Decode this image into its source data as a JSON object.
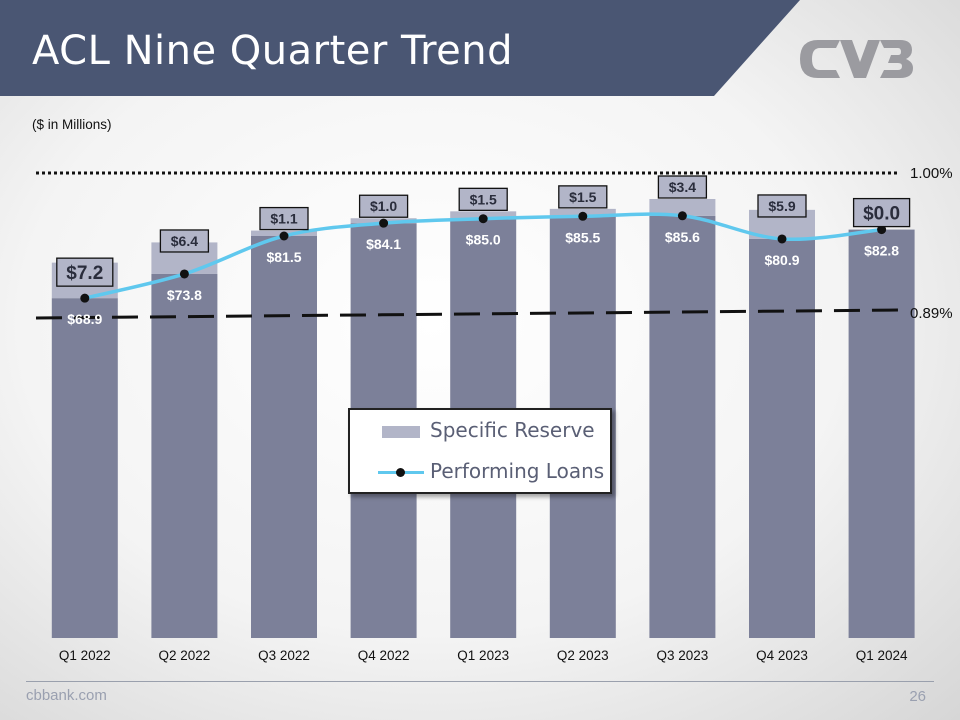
{
  "header": {
    "title": "ACL Nine Quarter Trend",
    "subtitle": "($ in Millions)",
    "band_color": "#4a5673"
  },
  "logo": {
    "text": "CVB",
    "color": "#9b9ba0"
  },
  "footer": {
    "url": "cbbank.com",
    "page": "26"
  },
  "legend": {
    "items": [
      {
        "label": "Specific Reserve",
        "color": "#b2b5c8"
      },
      {
        "label": "Performing Loans",
        "color": "#5fc8ee"
      }
    ]
  },
  "chart_data": {
    "type": "bar",
    "categories": [
      "Q1 2022",
      "Q2 2022",
      "Q3 2022",
      "Q4 2022",
      "Q1 2023",
      "Q2 2023",
      "Q3 2023",
      "Q4 2023",
      "Q1 2024"
    ],
    "series": [
      {
        "name": "Performing Loans",
        "render": "stacked-bar-base-with-line",
        "color": "#7c8099",
        "line_color": "#5fc8ee",
        "values": [
          68.9,
          73.8,
          81.5,
          84.1,
          85.0,
          85.5,
          85.6,
          80.9,
          82.8
        ],
        "labels": [
          "$68.9",
          "$73.8",
          "$81.5",
          "$84.1",
          "$85.0",
          "$85.5",
          "$85.6",
          "$80.9",
          "$82.8"
        ]
      },
      {
        "name": "Specific Reserve",
        "render": "stacked-bar-top",
        "color": "#b2b5c8",
        "values": [
          7.2,
          6.4,
          1.1,
          1.0,
          1.5,
          1.5,
          3.4,
          5.9,
          0.0
        ],
        "labels": [
          "$7.2",
          "$6.4",
          "$1.1",
          "$1.0",
          "$1.5",
          "$1.5",
          "$3.4",
          "$5.9",
          "$0.0"
        ]
      }
    ],
    "reference_lines": [
      {
        "label": "1.00%",
        "style": "dotted"
      },
      {
        "label": "0.89%",
        "style": "dashed"
      }
    ],
    "legend_position": "center",
    "grid": false
  }
}
